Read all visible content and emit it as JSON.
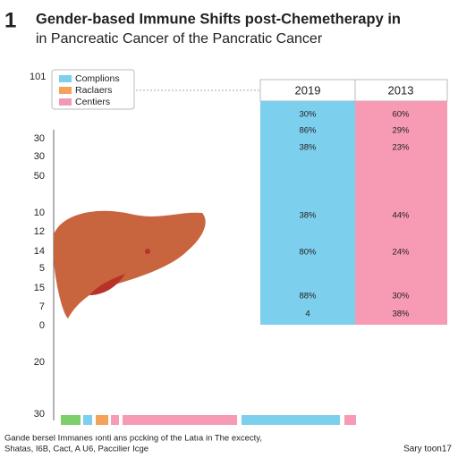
{
  "header": {
    "number": "1",
    "title": "Gender-based Immune Shifts post-Chemetherapy in",
    "subtitle": "in Pancreatic Cancer of the Pancratic Cancer"
  },
  "top_label": "101",
  "legend": [
    {
      "label": "Complions",
      "color": "#7dcfee"
    },
    {
      "label": "Raclaers",
      "color": "#f4a15c"
    },
    {
      "label": "Centiers",
      "color": "#f29ab4"
    }
  ],
  "axis_labels": [
    "30",
    "30",
    "50",
    "10",
    "12",
    "14",
    "5",
    "15",
    "7",
    "0",
    "20",
    "30"
  ],
  "table": {
    "columns": [
      "2019",
      "2013"
    ],
    "rows": [
      [
        "30%",
        "60%"
      ],
      [
        "86%",
        "29%"
      ],
      [
        "38%",
        "23%"
      ],
      [
        "38%",
        "44%"
      ],
      [
        "80%",
        "24%"
      ],
      [
        "88%",
        "30%"
      ],
      [
        "4",
        "38%"
      ]
    ]
  },
  "footer": {
    "note": [
      "Gande bersel Immanes ıonti ans pccking of the Latıa in The excecty,",
      "Shatas, I6B, Cact, A U6, Paccilier Icge"
    ],
    "right": "Sary toon17"
  }
}
